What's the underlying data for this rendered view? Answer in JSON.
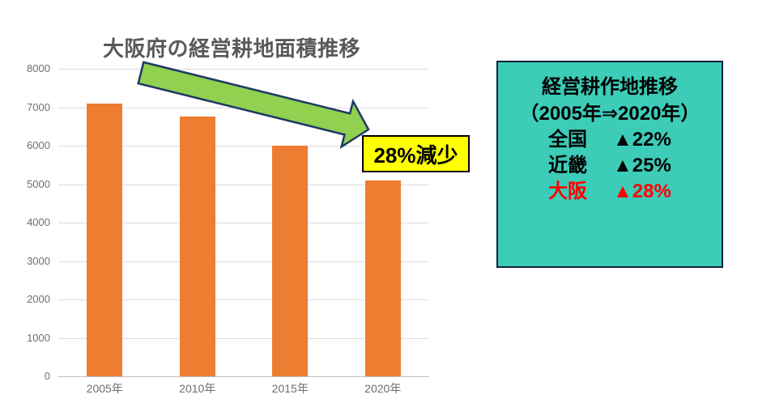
{
  "chart_data": {
    "type": "bar",
    "title": "大阪府の経営耕地面積推移",
    "categories": [
      "2005年",
      "2010年",
      "2015年",
      "2020年"
    ],
    "values": [
      7100,
      6750,
      6000,
      5100
    ],
    "xlabel": "",
    "ylabel": "",
    "ylim": [
      0,
      8000
    ],
    "yticks": [
      8000,
      7000,
      6000,
      5000,
      4000,
      3000,
      2000,
      1000,
      0
    ],
    "grid": true,
    "legend": "none",
    "bar_color": "#ED7D31",
    "annotation": "28%減少"
  },
  "info_box": {
    "title": "経営耕作地推移",
    "subtitle": "（2005年⇒2020年）",
    "rows": [
      {
        "region": "全国",
        "value": "▲22%",
        "highlight": false
      },
      {
        "region": "近畿",
        "value": "▲25%",
        "highlight": false
      },
      {
        "region": "大阪",
        "value": "▲28%",
        "highlight": true
      }
    ],
    "bg_color": "#3CCCB8",
    "highlight_color": "#FF0000"
  },
  "colors": {
    "title_gray": "#595959",
    "axis_text_gray": "#6E6E6E",
    "gridline_gray": "#DCDCDC",
    "axis_line_gray": "#BFBFBF",
    "arrow_fill": "#92D050",
    "arrow_stroke": "#1F3864",
    "callout_bg": "#FFFF00",
    "callout_text": "#000000"
  }
}
